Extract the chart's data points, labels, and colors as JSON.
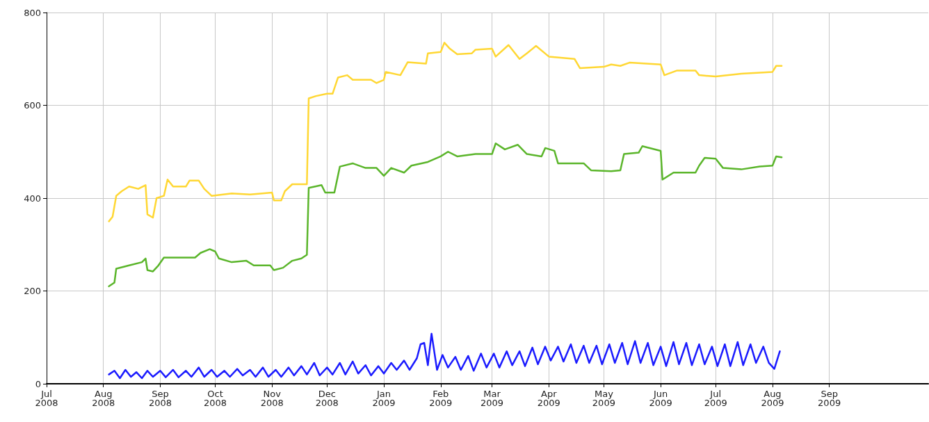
{
  "chart_data": {
    "type": "line",
    "xlim": [
      "2008-07-01",
      "2009-10-25"
    ],
    "xticks": [
      {
        "value": "2008-07-01",
        "label": "Jul 2008"
      },
      {
        "value": "2008-08-01",
        "label": "Aug 2008"
      },
      {
        "value": "2008-09-01",
        "label": "Sep 2008"
      },
      {
        "value": "2008-10-01",
        "label": "Oct 2008"
      },
      {
        "value": "2008-11-01",
        "label": "Nov 2008"
      },
      {
        "value": "2008-12-01",
        "label": "Dec 2008"
      },
      {
        "value": "2009-01-01",
        "label": "Jan 2009"
      },
      {
        "value": "2009-02-01",
        "label": "Feb 2009"
      },
      {
        "value": "2009-03-01",
        "label": "Mar 2009"
      },
      {
        "value": "2009-04-01",
        "label": "Apr 2009"
      },
      {
        "value": "2009-05-01",
        "label": "May 2009"
      },
      {
        "value": "2009-06-01",
        "label": "Jun 2009"
      },
      {
        "value": "2009-07-01",
        "label": "Jul 2009"
      },
      {
        "value": "2009-08-01",
        "label": "Aug 2009"
      },
      {
        "value": "2009-09-01",
        "label": "Sep 2009"
      }
    ],
    "ylim": [
      0,
      800
    ],
    "yticks": [
      0,
      200,
      400,
      600,
      800
    ],
    "grid": true,
    "marker": "none",
    "line_style": "solid",
    "series": [
      {
        "color": "#ffd733",
        "x": [
          "2008-08-04",
          "2008-08-06",
          "2008-08-08",
          "2008-08-11",
          "2008-08-15",
          "2008-08-20",
          "2008-08-24",
          "2008-08-25",
          "2008-08-28",
          "2008-08-30",
          "2008-09-03",
          "2008-09-05",
          "2008-09-08",
          "2008-09-15",
          "2008-09-17",
          "2008-09-22",
          "2008-09-25",
          "2008-09-29",
          "2008-10-10",
          "2008-10-20",
          "2008-11-01",
          "2008-11-02",
          "2008-11-06",
          "2008-11-08",
          "2008-11-12",
          "2008-11-20",
          "2008-11-21",
          "2008-11-25",
          "2008-12-01",
          "2008-12-04",
          "2008-12-07",
          "2008-12-12",
          "2008-12-15",
          "2008-12-25",
          "2008-12-28",
          "2009-01-01",
          "2009-01-02",
          "2009-01-10",
          "2009-01-14",
          "2009-01-24",
          "2009-01-25",
          "2009-02-01",
          "2009-02-03",
          "2009-02-06",
          "2009-02-10",
          "2009-02-18",
          "2009-02-20",
          "2009-03-01",
          "2009-03-03",
          "2009-03-10",
          "2009-03-16",
          "2009-03-20",
          "2009-03-25",
          "2009-04-01",
          "2009-04-15",
          "2009-04-18",
          "2009-05-01",
          "2009-05-05",
          "2009-05-10",
          "2009-05-15",
          "2009-06-01",
          "2009-06-03",
          "2009-06-10",
          "2009-06-20",
          "2009-06-22",
          "2009-07-01",
          "2009-07-15",
          "2009-08-01",
          "2009-08-03",
          "2009-08-06"
        ],
        "values": [
          350,
          360,
          405,
          415,
          425,
          420,
          428,
          365,
          358,
          400,
          405,
          440,
          425,
          425,
          438,
          438,
          420,
          405,
          410,
          408,
          412,
          395,
          395,
          415,
          430,
          430,
          615,
          620,
          625,
          625,
          660,
          665,
          655,
          655,
          648,
          655,
          672,
          665,
          693,
          690,
          712,
          715,
          735,
          722,
          710,
          712,
          720,
          722,
          705,
          730,
          700,
          712,
          728,
          705,
          700,
          680,
          683,
          688,
          685,
          692,
          688,
          665,
          675,
          675,
          665,
          662,
          668,
          672,
          685,
          685
        ]
      },
      {
        "color": "#5ab52a",
        "x": [
          "2008-08-04",
          "2008-08-07",
          "2008-08-08",
          "2008-08-15",
          "2008-08-22",
          "2008-08-24",
          "2008-08-25",
          "2008-08-28",
          "2008-08-31",
          "2008-09-03",
          "2008-09-15",
          "2008-09-20",
          "2008-09-23",
          "2008-09-28",
          "2008-10-01",
          "2008-10-03",
          "2008-10-10",
          "2008-10-18",
          "2008-10-22",
          "2008-10-31",
          "2008-11-02",
          "2008-11-07",
          "2008-11-12",
          "2008-11-17",
          "2008-11-20",
          "2008-11-21",
          "2008-11-28",
          "2008-11-30",
          "2008-12-05",
          "2008-12-08",
          "2008-12-15",
          "2008-12-22",
          "2008-12-28",
          "2009-01-01",
          "2009-01-05",
          "2009-01-12",
          "2009-01-16",
          "2009-01-25",
          "2009-02-01",
          "2009-02-05",
          "2009-02-10",
          "2009-02-20",
          "2009-03-01",
          "2009-03-03",
          "2009-03-08",
          "2009-03-15",
          "2009-03-20",
          "2009-03-28",
          "2009-03-30",
          "2009-04-04",
          "2009-04-06",
          "2009-04-20",
          "2009-04-24",
          "2009-05-05",
          "2009-05-10",
          "2009-05-12",
          "2009-05-20",
          "2009-05-22",
          "2009-06-01",
          "2009-06-02",
          "2009-06-08",
          "2009-06-20",
          "2009-06-22",
          "2009-06-25",
          "2009-07-01",
          "2009-07-05",
          "2009-07-15",
          "2009-07-25",
          "2009-08-01",
          "2009-08-03",
          "2009-08-06"
        ],
        "values": [
          210,
          218,
          248,
          255,
          262,
          270,
          245,
          242,
          255,
          272,
          272,
          272,
          282,
          290,
          285,
          270,
          262,
          265,
          255,
          255,
          245,
          250,
          265,
          270,
          278,
          422,
          428,
          412,
          412,
          468,
          475,
          465,
          465,
          448,
          465,
          455,
          470,
          478,
          490,
          500,
          490,
          495,
          495,
          518,
          505,
          515,
          495,
          490,
          508,
          502,
          475,
          475,
          460,
          458,
          460,
          495,
          498,
          512,
          502,
          440,
          455,
          455,
          470,
          487,
          485,
          465,
          462,
          468,
          470,
          490,
          488
        ]
      },
      {
        "color": "#1a1aff",
        "x": [
          "2008-08-04",
          "2008-08-07",
          "2008-08-10",
          "2008-08-13",
          "2008-08-16",
          "2008-08-19",
          "2008-08-22",
          "2008-08-25",
          "2008-08-28",
          "2008-09-01",
          "2008-09-04",
          "2008-09-08",
          "2008-09-11",
          "2008-09-15",
          "2008-09-18",
          "2008-09-22",
          "2008-09-25",
          "2008-09-29",
          "2008-10-02",
          "2008-10-06",
          "2008-10-09",
          "2008-10-13",
          "2008-10-16",
          "2008-10-20",
          "2008-10-23",
          "2008-10-27",
          "2008-10-30",
          "2008-11-03",
          "2008-11-06",
          "2008-11-10",
          "2008-11-13",
          "2008-11-17",
          "2008-11-20",
          "2008-11-24",
          "2008-11-27",
          "2008-12-01",
          "2008-12-04",
          "2008-12-08",
          "2008-12-11",
          "2008-12-15",
          "2008-12-18",
          "2008-12-22",
          "2008-12-25",
          "2008-12-29",
          "2009-01-01",
          "2009-01-05",
          "2009-01-08",
          "2009-01-12",
          "2009-01-15",
          "2009-01-19",
          "2009-01-21",
          "2009-01-23",
          "2009-01-25",
          "2009-01-27",
          "2009-01-30",
          "2009-02-02",
          "2009-02-05",
          "2009-02-09",
          "2009-02-12",
          "2009-02-16",
          "2009-02-19",
          "2009-02-23",
          "2009-02-26",
          "2009-03-02",
          "2009-03-05",
          "2009-03-09",
          "2009-03-12",
          "2009-03-16",
          "2009-03-19",
          "2009-03-23",
          "2009-03-26",
          "2009-03-30",
          "2009-04-02",
          "2009-04-06",
          "2009-04-09",
          "2009-04-13",
          "2009-04-16",
          "2009-04-20",
          "2009-04-23",
          "2009-04-27",
          "2009-04-30",
          "2009-05-04",
          "2009-05-07",
          "2009-05-11",
          "2009-05-14",
          "2009-05-18",
          "2009-05-21",
          "2009-05-25",
          "2009-05-28",
          "2009-06-01",
          "2009-06-04",
          "2009-06-08",
          "2009-06-11",
          "2009-06-15",
          "2009-06-18",
          "2009-06-22",
          "2009-06-25",
          "2009-06-29",
          "2009-07-02",
          "2009-07-06",
          "2009-07-09",
          "2009-07-13",
          "2009-07-16",
          "2009-07-20",
          "2009-07-23",
          "2009-07-27",
          "2009-07-30",
          "2009-08-02",
          "2009-08-05"
        ],
        "values": [
          20,
          28,
          12,
          30,
          15,
          25,
          12,
          28,
          15,
          28,
          14,
          30,
          14,
          28,
          15,
          35,
          15,
          30,
          15,
          28,
          15,
          32,
          18,
          30,
          15,
          35,
          15,
          30,
          15,
          35,
          18,
          38,
          20,
          45,
          18,
          35,
          20,
          45,
          20,
          48,
          22,
          40,
          18,
          38,
          22,
          45,
          30,
          50,
          30,
          55,
          85,
          88,
          40,
          108,
          30,
          62,
          35,
          58,
          30,
          60,
          28,
          65,
          35,
          65,
          35,
          70,
          40,
          70,
          38,
          78,
          42,
          80,
          50,
          80,
          48,
          85,
          45,
          82,
          45,
          82,
          42,
          85,
          45,
          88,
          42,
          92,
          45,
          88,
          40,
          80,
          38,
          90,
          42,
          88,
          40,
          85,
          42,
          80,
          38,
          85,
          38,
          90,
          40,
          85,
          45,
          80,
          45,
          32,
          70
        ]
      }
    ]
  }
}
